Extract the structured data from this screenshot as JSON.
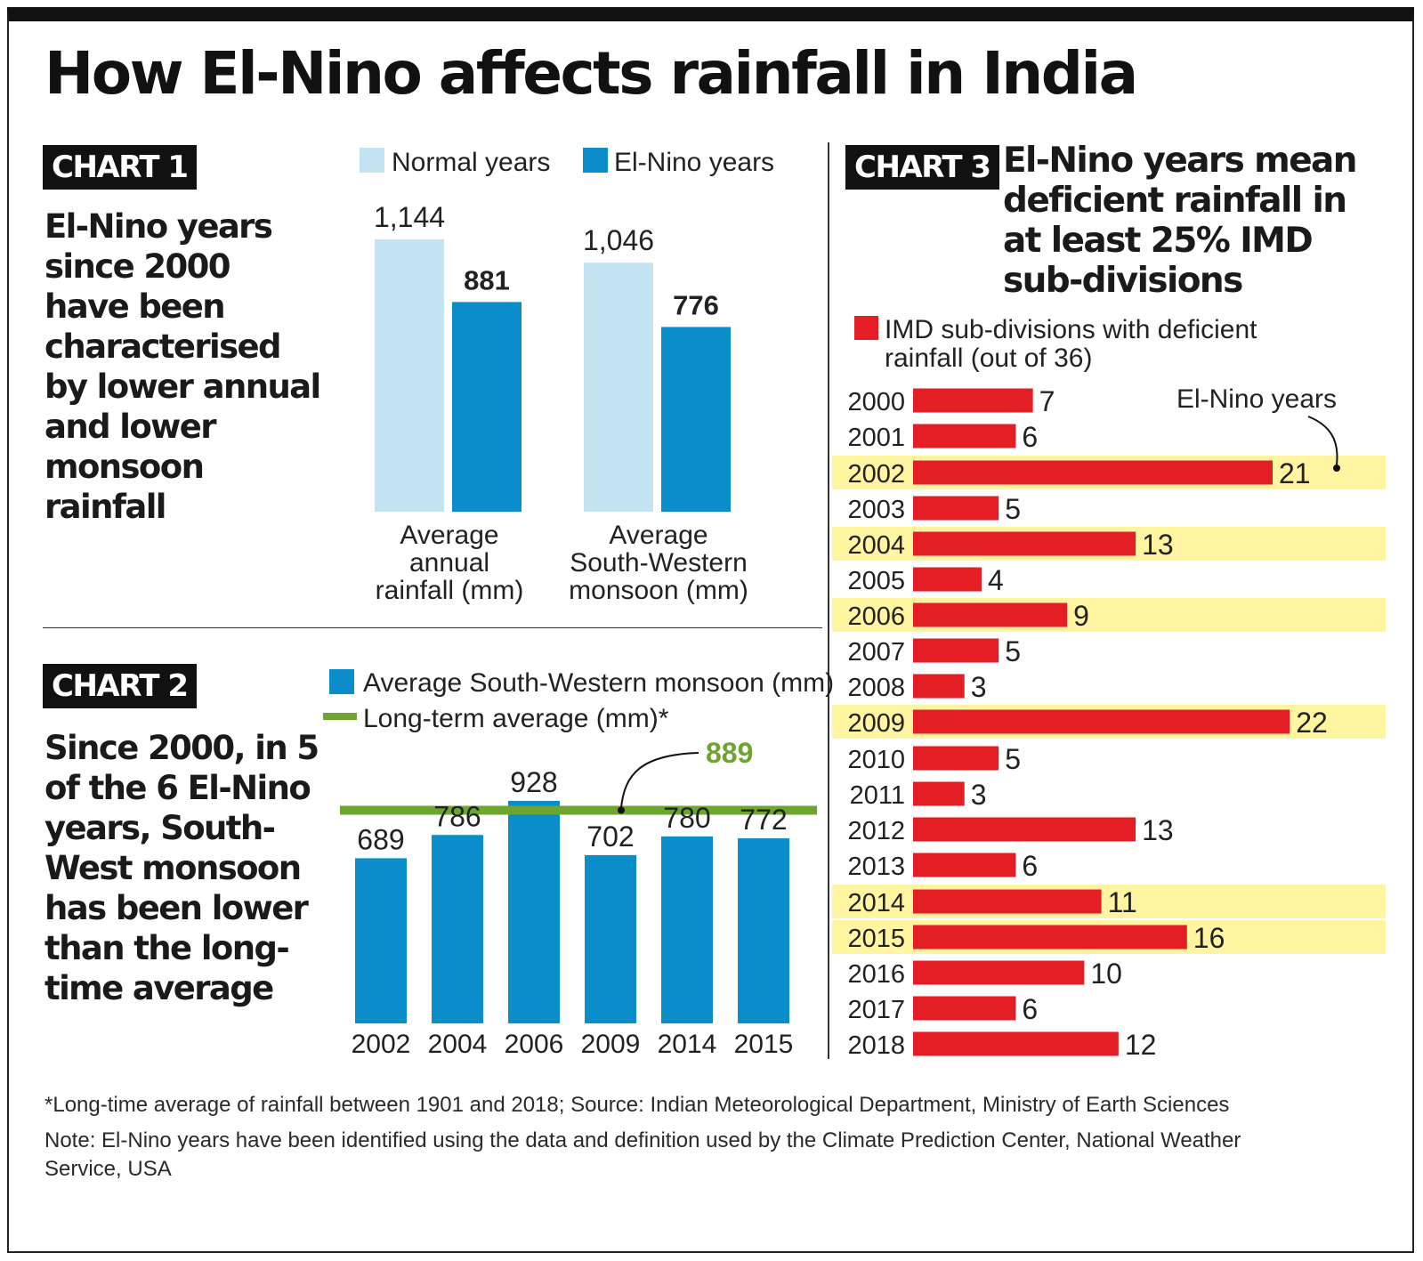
{
  "title": "How El-Nino affects rainfall in India",
  "chart1": {
    "tag": "CHART 1",
    "subtitle": "El-Nino years since 2000 have been characterised by lower annual and lower monsoon rainfall",
    "legend": [
      "Normal years",
      "El-Nino years"
    ]
  },
  "chart2": {
    "tag": "CHART 2",
    "subtitle": "Since 2000, in 5 of the 6 El-Nino years, South-West monsoon has been lower than the long-time average",
    "legend": [
      "Average South-Western monsoon (mm)",
      "Long-term average (mm)*"
    ]
  },
  "chart3": {
    "tag": "CHART 3",
    "subtitle": "El-Nino years mean deficient rainfall in at least 25% IMD sub-divisions",
    "legend": "IMD sub-divisions with deficient rainfall (out of 36)",
    "annotation": "El-Nino years"
  },
  "footnote": {
    "source": "*Long-time average of rainfall between 1901 and 2018; Source: Indian Meteorological Department, Ministry of Earth Sciences",
    "note": "Note: El-Nino years have been identified using the data and definition used by the Climate Prediction Center, National Weather Service, USA"
  },
  "colors": {
    "normal": "#c3e2f2",
    "elnino": "#0a8dc9",
    "green": "#6da530",
    "red": "#e31e24",
    "highlight": "#fff4a0"
  },
  "chart_data": [
    {
      "type": "bar",
      "categories": [
        "Average annual rainfall (mm)",
        "Average South-Western monsoon (mm)"
      ],
      "series": [
        {
          "name": "Normal years",
          "values": [
            1144,
            1046
          ],
          "labels": [
            "1,144",
            "1,046"
          ]
        },
        {
          "name": "El-Nino years",
          "values": [
            881,
            776
          ],
          "labels": [
            "881",
            "776"
          ]
        }
      ],
      "ylim": [
        0,
        1200
      ]
    },
    {
      "type": "bar",
      "categories": [
        "2002",
        "2004",
        "2006",
        "2009",
        "2014",
        "2015"
      ],
      "series": [
        {
          "name": "Average South-Western monsoon (mm)",
          "values": [
            689,
            786,
            928,
            702,
            780,
            772
          ]
        }
      ],
      "reference_line": {
        "name": "Long-term average (mm)*",
        "value": 889,
        "label": "889"
      },
      "ylim": [
        0,
        960
      ]
    },
    {
      "type": "bar",
      "orientation": "horizontal",
      "categories": [
        "2000",
        "2001",
        "2002",
        "2003",
        "2004",
        "2005",
        "2006",
        "2007",
        "2008",
        "2009",
        "2010",
        "2011",
        "2012",
        "2013",
        "2014",
        "2015",
        "2016",
        "2017",
        "2018"
      ],
      "values": [
        7,
        6,
        21,
        5,
        13,
        4,
        9,
        5,
        3,
        22,
        5,
        3,
        13,
        6,
        11,
        16,
        10,
        6,
        12
      ],
      "highlighted": [
        "2002",
        "2004",
        "2006",
        "2009",
        "2014",
        "2015"
      ],
      "xlim": [
        0,
        25
      ]
    }
  ]
}
